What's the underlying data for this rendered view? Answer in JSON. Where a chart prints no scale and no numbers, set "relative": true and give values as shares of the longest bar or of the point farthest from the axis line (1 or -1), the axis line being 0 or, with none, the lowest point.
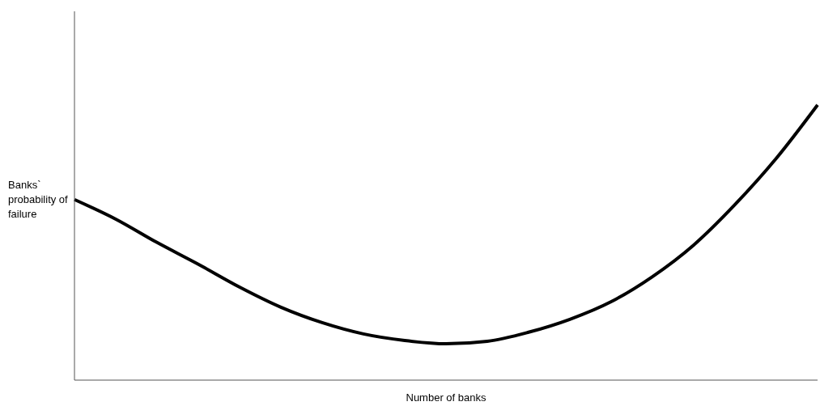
{
  "chart_data": {
    "type": "line",
    "relative": true,
    "xlabel": "Number of banks",
    "ylabel": "Banks` probability of failure",
    "categories": [
      null,
      null,
      null,
      null,
      null,
      null,
      null,
      null,
      null,
      null,
      null,
      null,
      null,
      null,
      null,
      null,
      null,
      null,
      null
    ],
    "series": [
      {
        "color": "#000000",
        "values": [
          0.656,
          0.585,
          0.5,
          0.421,
          0.338,
          0.265,
          0.209,
          0.168,
          0.144,
          0.132,
          0.141,
          0.174,
          0.221,
          0.285,
          0.376,
          0.491,
          0.638,
          0.806,
          1
        ]
      }
    ],
    "grid": false,
    "legend": false,
    "marker": "none",
    "line_style": "solid"
  }
}
